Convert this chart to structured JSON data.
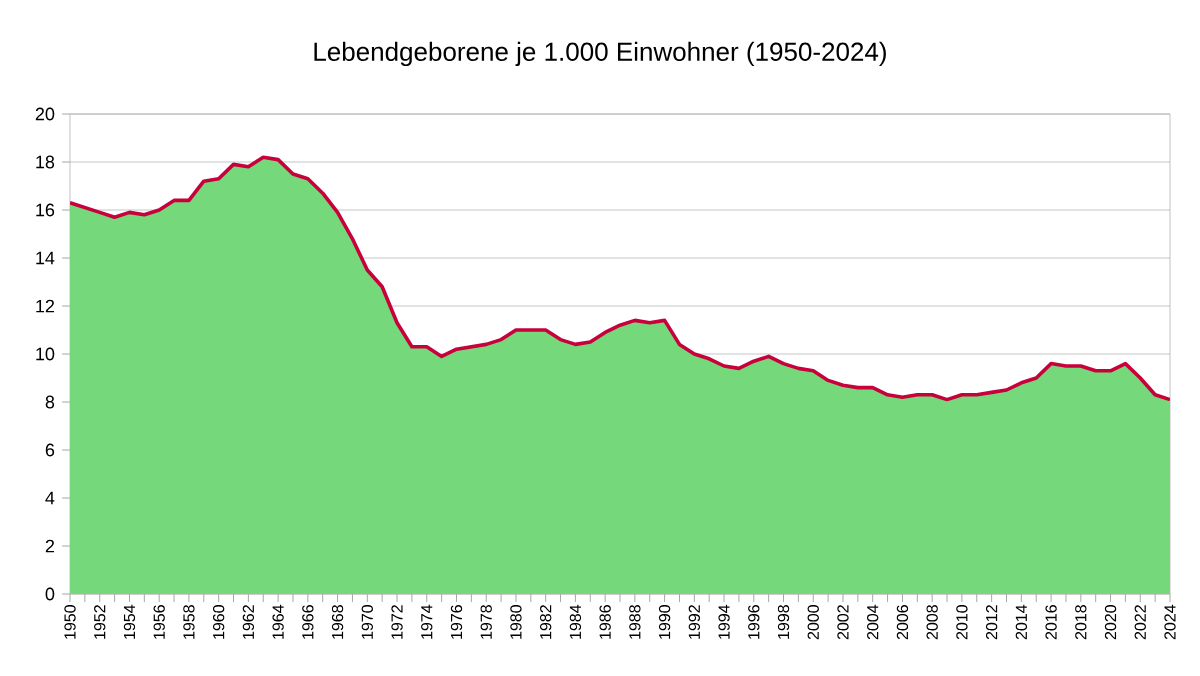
{
  "chart_data": {
    "type": "area",
    "title": "Lebendgeborene je 1.000 Einwohner (1950-2024)",
    "x": [
      1950,
      1951,
      1952,
      1953,
      1954,
      1955,
      1956,
      1957,
      1958,
      1959,
      1960,
      1961,
      1962,
      1963,
      1964,
      1965,
      1966,
      1967,
      1968,
      1969,
      1970,
      1971,
      1972,
      1973,
      1974,
      1975,
      1976,
      1977,
      1978,
      1979,
      1980,
      1981,
      1982,
      1983,
      1984,
      1985,
      1986,
      1987,
      1988,
      1989,
      1990,
      1991,
      1992,
      1993,
      1994,
      1995,
      1996,
      1997,
      1998,
      1999,
      2000,
      2001,
      2002,
      2003,
      2004,
      2005,
      2006,
      2007,
      2008,
      2009,
      2010,
      2011,
      2012,
      2013,
      2014,
      2015,
      2016,
      2017,
      2018,
      2019,
      2020,
      2021,
      2022,
      2023,
      2024
    ],
    "series": [
      {
        "color": "#75d87a",
        "values": [
          16.3,
          16.1,
          15.9,
          15.7,
          15.9,
          15.8,
          16.0,
          16.4,
          16.4,
          17.2,
          17.3,
          17.9,
          17.8,
          18.2,
          18.1,
          17.5,
          17.3,
          16.7,
          15.9,
          14.8,
          13.5,
          12.8,
          11.3,
          10.3,
          10.3,
          9.9,
          10.2,
          10.3,
          10.4,
          10.6,
          11.0,
          11.0,
          11.0,
          10.6,
          10.4,
          10.5,
          10.9,
          11.2,
          11.4,
          11.3,
          11.4,
          10.4,
          10.0,
          9.8,
          9.5,
          9.4,
          9.7,
          9.9,
          9.6,
          9.4,
          9.3,
          8.9,
          8.7,
          8.6,
          8.6,
          8.3,
          8.2,
          8.3,
          8.3,
          8.1,
          8.3,
          8.3,
          8.4,
          8.5,
          8.8,
          9.0,
          9.6,
          9.5,
          9.5,
          9.3,
          9.3,
          9.6,
          9.0,
          8.3,
          8.1
        ]
      },
      {
        "type": "line",
        "color": "#c8003c",
        "values": [
          16.3,
          16.1,
          15.9,
          15.7,
          15.9,
          15.8,
          16.0,
          16.4,
          16.4,
          17.2,
          17.3,
          17.9,
          17.8,
          18.2,
          18.1,
          17.5,
          17.3,
          16.7,
          15.9,
          14.8,
          13.5,
          12.8,
          11.3,
          10.3,
          10.3,
          9.9,
          10.2,
          10.3,
          10.4,
          10.6,
          11.0,
          11.0,
          11.0,
          10.6,
          10.4,
          10.5,
          10.9,
          11.2,
          11.4,
          11.3,
          11.4,
          10.4,
          10.0,
          9.8,
          9.5,
          9.4,
          9.7,
          9.9,
          9.6,
          9.4,
          9.3,
          8.9,
          8.7,
          8.6,
          8.6,
          8.3,
          8.2,
          8.3,
          8.3,
          8.1,
          8.3,
          8.3,
          8.4,
          8.5,
          8.8,
          9.0,
          9.6,
          9.5,
          9.5,
          9.3,
          9.3,
          9.6,
          9.0,
          8.3,
          8.1
        ]
      }
    ],
    "xlim": [
      1950,
      2024
    ],
    "xticks": [
      1950,
      {
        "value": 1951,
        "label": null
      },
      1952,
      {
        "value": 1953,
        "label": null
      },
      1954,
      {
        "value": 1955,
        "label": null
      },
      1956,
      {
        "value": 1957,
        "label": null
      },
      1958,
      {
        "value": 1959,
        "label": null
      },
      1960,
      {
        "value": 1961,
        "label": null
      },
      1962,
      {
        "value": 1963,
        "label": null
      },
      1964,
      {
        "value": 1965,
        "label": null
      },
      1966,
      {
        "value": 1967,
        "label": null
      },
      1968,
      {
        "value": 1969,
        "label": null
      },
      1970,
      {
        "value": 1971,
        "label": null
      },
      1972,
      {
        "value": 1973,
        "label": null
      },
      1974,
      {
        "value": 1975,
        "label": null
      },
      1976,
      {
        "value": 1977,
        "label": null
      },
      1978,
      {
        "value": 1979,
        "label": null
      },
      1980,
      {
        "value": 1981,
        "label": null
      },
      1982,
      {
        "value": 1983,
        "label": null
      },
      1984,
      {
        "value": 1985,
        "label": null
      },
      1986,
      {
        "value": 1987,
        "label": null
      },
      1988,
      {
        "value": 1989,
        "label": null
      },
      1990,
      {
        "value": 1991,
        "label": null
      },
      1992,
      {
        "value": 1993,
        "label": null
      },
      1994,
      {
        "value": 1995,
        "label": null
      },
      1996,
      {
        "value": 1997,
        "label": null
      },
      1998,
      {
        "value": 1999,
        "label": null
      },
      2000,
      {
        "value": 2001,
        "label": null
      },
      2002,
      {
        "value": 2003,
        "label": null
      },
      2004,
      {
        "value": 2005,
        "label": null
      },
      2006,
      {
        "value": 2007,
        "label": null
      },
      2008,
      {
        "value": 2009,
        "label": null
      },
      2010,
      {
        "value": 2011,
        "label": null
      },
      2012,
      {
        "value": 2013,
        "label": null
      },
      2014,
      {
        "value": 2015,
        "label": null
      },
      2016,
      {
        "value": 2017,
        "label": null
      },
      2018,
      {
        "value": 2019,
        "label": null
      },
      2020,
      {
        "value": 2021,
        "label": null
      },
      2022,
      {
        "value": 2023,
        "label": null
      },
      2024
    ],
    "ylim": [
      0,
      20
    ],
    "yticks": [
      0,
      2,
      4,
      6,
      8,
      10,
      12,
      14,
      16,
      18,
      20
    ],
    "grid": "y"
  }
}
